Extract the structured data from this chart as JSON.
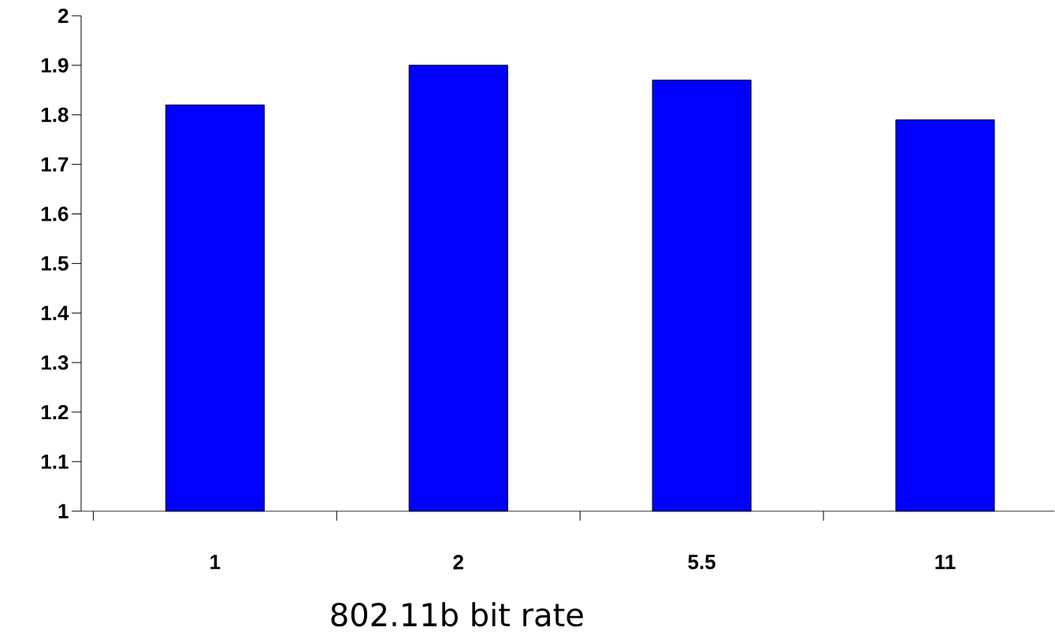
{
  "chart_data": {
    "type": "bar",
    "categories": [
      "1",
      "2",
      "5.5",
      "11"
    ],
    "values": [
      1.82,
      1.9,
      1.87,
      1.79
    ],
    "color": "#0000ff",
    "xlabel": "802.11b bit rate",
    "ylim": [
      1,
      2
    ],
    "yticks": [
      1,
      1.1,
      1.2,
      1.3,
      1.4,
      1.5,
      1.6,
      1.7,
      1.8,
      1.9,
      2
    ]
  }
}
